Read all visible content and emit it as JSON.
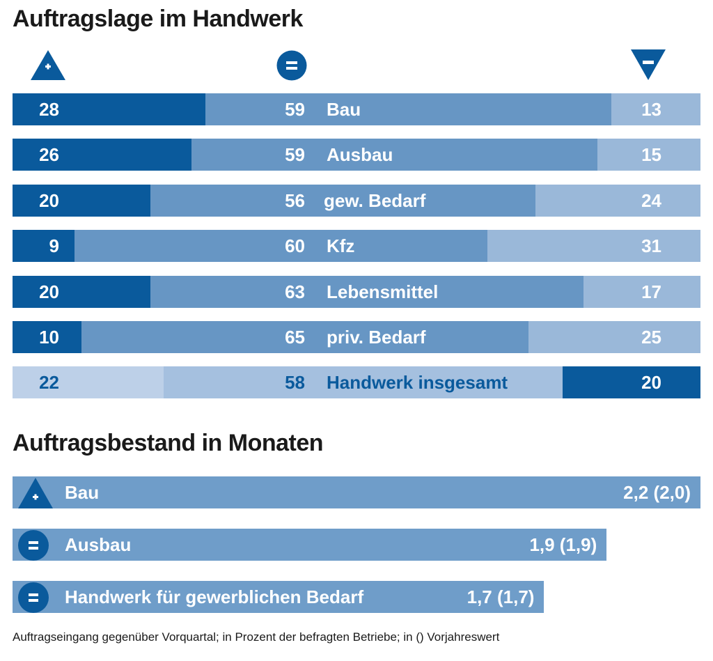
{
  "colors": {
    "plus_dark": "#0a5a9c",
    "equal_mid": "#6796c4",
    "minus_light": "#9ab8d9",
    "total_plus": "#bdd0e8",
    "total_equal": "#a5c0df",
    "total_minus": "#0a5a9c",
    "total_text": "#0a5a9c",
    "bestand_bar": "#6f9dc9",
    "icon": "#0a5a9c"
  },
  "chart_data": [
    {
      "type": "bar",
      "stacked": true,
      "orientation": "horizontal",
      "title": "Auftragslage im Handwerk",
      "legend": [
        {
          "symbol": "triangle-up-plus",
          "meaning": "+"
        },
        {
          "symbol": "circle-equals",
          "meaning": "="
        },
        {
          "symbol": "triangle-down-minus",
          "meaning": "−"
        }
      ],
      "unit": "Prozent",
      "categories": [
        "Bau",
        "Ausbau",
        "gew. Bedarf",
        "Kfz",
        "Lebensmittel",
        "priv. Bedarf",
        "Handwerk insgesamt"
      ],
      "series": [
        {
          "name": "+",
          "values": [
            28,
            26,
            20,
            9,
            20,
            10,
            22
          ]
        },
        {
          "name": "=",
          "values": [
            59,
            59,
            56,
            60,
            63,
            65,
            58
          ]
        },
        {
          "name": "-",
          "values": [
            13,
            15,
            24,
            31,
            17,
            25,
            20
          ]
        }
      ],
      "xlim": [
        0,
        100
      ]
    },
    {
      "type": "bar",
      "orientation": "horizontal",
      "title": "Auftragsbestand in Monaten",
      "categories": [
        "Bau",
        "Ausbau",
        "Handwerk für gewerblichen Bedarf"
      ],
      "values": [
        2.2,
        1.9,
        1.7
      ],
      "previous_year": [
        2.0,
        1.9,
        1.7
      ],
      "labels": [
        "2,2  (2,0)",
        "1,9  (1,9)",
        "1,7  (1,7)"
      ],
      "trend_icons": [
        "triangle-up-plus",
        "circle-equals",
        "circle-equals"
      ],
      "xlim": [
        0,
        2.2
      ]
    }
  ],
  "footnote": "Auftragseingang gegenüber Vorquartal; in Prozent der befragten Betriebe; in () Vorjahreswert"
}
